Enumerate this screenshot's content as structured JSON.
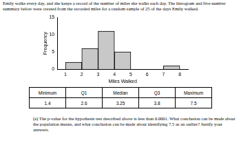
{
  "intro": "Emily walks every day, and she keeps a record of the number of miles she walks each day. The histogram and five-number summary below were created from the recorded miles for a random sample of 25 of the days Emily walked.",
  "chart_data": {
    "type": "histogram",
    "x_label": "Miles Walked",
    "y_label": "Frequency",
    "bins": [
      1,
      2,
      3,
      4,
      5,
      6,
      7,
      8
    ],
    "counts": [
      2,
      6,
      11,
      5,
      0,
      0,
      1
    ],
    "color": "#c8c8c8",
    "xlim": [
      0.5,
      8.5
    ],
    "xticks": [
      1,
      2,
      3,
      4,
      5,
      6,
      7,
      8
    ],
    "ylim": [
      0,
      15
    ],
    "yticks": [
      0,
      5,
      10,
      15
    ],
    "grid": false
  },
  "table": {
    "header": [
      "Minimum",
      "Q1",
      "Median",
      "Q3",
      "Maximum"
    ],
    "rows": [
      [
        1.4,
        2.6,
        3.25,
        3.8,
        7.5
      ]
    ]
  },
  "question": "(e) The p-value for the hypothesis test described above is less than 0.0001. What conclusion can be made about the population means, and what conclusion can be made about identifying 7.5 as an outlier? Justify your answers."
}
